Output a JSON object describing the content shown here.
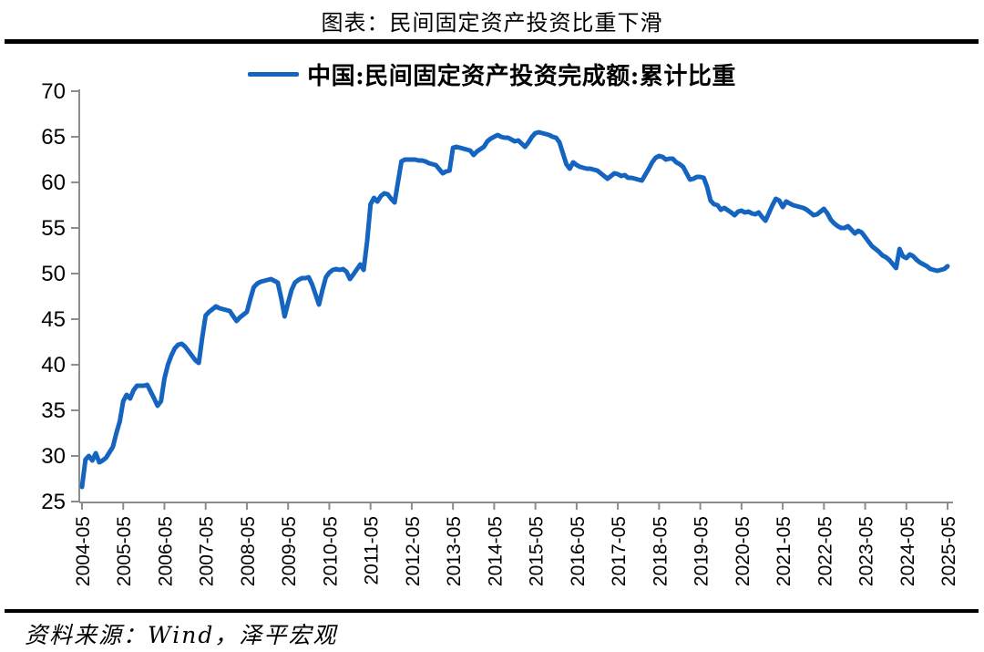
{
  "page_title": "图表：民间固定资产投资比重下滑",
  "source_note": "资料来源：Wind，泽平宏观",
  "chart_data": {
    "type": "line",
    "title": "图表：民间固定资产投资比重下滑",
    "legend": "中国:民间固定资产投资完成额:累计比重",
    "legend_position": "top-center",
    "line_color": "#1565C0",
    "axis_color": "#8C8C8C",
    "tick_label_color": "#000000",
    "grid": false,
    "ylim": [
      25,
      70
    ],
    "y_ticks": [
      25,
      30,
      35,
      40,
      45,
      50,
      55,
      60,
      65,
      70
    ],
    "x_tick_labels": [
      "2004-05",
      "2005-05",
      "2006-05",
      "2007-05",
      "2008-05",
      "2009-05",
      "2010-05",
      "2011-05",
      "2012-05",
      "2013-05",
      "2014-05",
      "2015-05",
      "2016-05",
      "2017-05",
      "2018-05",
      "2019-05",
      "2020-05",
      "2021-05",
      "2022-05",
      "2023-05",
      "2024-05",
      "2025-05"
    ],
    "unit": "%",
    "series": [
      {
        "name": "中国:民间固定资产投资完成额:累计比重",
        "points": [
          [
            "2004-05",
            26.6
          ],
          [
            "2004-06",
            29.6
          ],
          [
            "2004-07",
            30.0
          ],
          [
            "2004-08",
            29.5
          ],
          [
            "2004-09",
            30.3
          ],
          [
            "2004-10",
            29.3
          ],
          [
            "2004-11",
            29.5
          ],
          [
            "2004-12",
            29.8
          ],
          [
            "2005-02",
            31.0
          ],
          [
            "2005-03",
            32.5
          ],
          [
            "2005-04",
            33.8
          ],
          [
            "2005-05",
            36.0
          ],
          [
            "2005-06",
            36.7
          ],
          [
            "2005-07",
            36.3
          ],
          [
            "2005-08",
            37.2
          ],
          [
            "2005-09",
            37.7
          ],
          [
            "2005-10",
            37.7
          ],
          [
            "2005-11",
            37.7
          ],
          [
            "2005-12",
            37.8
          ],
          [
            "2006-02",
            36.3
          ],
          [
            "2006-03",
            35.5
          ],
          [
            "2006-04",
            36.0
          ],
          [
            "2006-05",
            38.5
          ],
          [
            "2006-06",
            40.0
          ],
          [
            "2006-07",
            41.0
          ],
          [
            "2006-08",
            41.8
          ],
          [
            "2006-09",
            42.2
          ],
          [
            "2006-10",
            42.3
          ],
          [
            "2006-11",
            42.0
          ],
          [
            "2006-12",
            41.5
          ],
          [
            "2007-02",
            40.5
          ],
          [
            "2007-03",
            40.2
          ],
          [
            "2007-04",
            43.0
          ],
          [
            "2007-05",
            45.4
          ],
          [
            "2007-06",
            45.8
          ],
          [
            "2007-07",
            46.1
          ],
          [
            "2007-08",
            46.4
          ],
          [
            "2007-09",
            46.2
          ],
          [
            "2007-10",
            46.1
          ],
          [
            "2007-11",
            46.0
          ],
          [
            "2007-12",
            45.9
          ],
          [
            "2008-02",
            44.8
          ],
          [
            "2008-03",
            45.2
          ],
          [
            "2008-04",
            45.5
          ],
          [
            "2008-05",
            45.8
          ],
          [
            "2008-06",
            47.2
          ],
          [
            "2008-07",
            48.5
          ],
          [
            "2008-08",
            48.9
          ],
          [
            "2008-09",
            49.1
          ],
          [
            "2008-10",
            49.2
          ],
          [
            "2008-11",
            49.3
          ],
          [
            "2008-12",
            49.4
          ],
          [
            "2009-02",
            49.0
          ],
          [
            "2009-03",
            47.3
          ],
          [
            "2009-04",
            45.3
          ],
          [
            "2009-05",
            46.8
          ],
          [
            "2009-06",
            48.2
          ],
          [
            "2009-07",
            49.0
          ],
          [
            "2009-08",
            49.3
          ],
          [
            "2009-09",
            49.5
          ],
          [
            "2009-10",
            49.5
          ],
          [
            "2009-11",
            49.6
          ],
          [
            "2009-12",
            48.8
          ],
          [
            "2010-02",
            46.6
          ],
          [
            "2010-03",
            48.2
          ],
          [
            "2010-04",
            49.6
          ],
          [
            "2010-05",
            50.1
          ],
          [
            "2010-06",
            50.4
          ],
          [
            "2010-07",
            50.5
          ],
          [
            "2010-08",
            50.4
          ],
          [
            "2010-09",
            50.5
          ],
          [
            "2010-10",
            50.2
          ],
          [
            "2010-11",
            49.4
          ],
          [
            "2010-12",
            49.9
          ],
          [
            "2011-02",
            51.0
          ],
          [
            "2011-03",
            50.4
          ],
          [
            "2011-04",
            53.5
          ],
          [
            "2011-05",
            57.6
          ],
          [
            "2011-06",
            58.3
          ],
          [
            "2011-07",
            57.9
          ],
          [
            "2011-08",
            58.5
          ],
          [
            "2011-09",
            58.8
          ],
          [
            "2011-10",
            58.7
          ],
          [
            "2011-11",
            58.2
          ],
          [
            "2011-12",
            57.8
          ],
          [
            "2012-02",
            62.3
          ],
          [
            "2012-03",
            62.5
          ],
          [
            "2012-04",
            62.5
          ],
          [
            "2012-05",
            62.5
          ],
          [
            "2012-06",
            62.5
          ],
          [
            "2012-07",
            62.4
          ],
          [
            "2012-08",
            62.4
          ],
          [
            "2012-09",
            62.3
          ],
          [
            "2012-10",
            62.1
          ],
          [
            "2012-11",
            62.0
          ],
          [
            "2012-12",
            61.9
          ],
          [
            "2013-02",
            61.0
          ],
          [
            "2013-03",
            61.2
          ],
          [
            "2013-04",
            61.3
          ],
          [
            "2013-05",
            63.8
          ],
          [
            "2013-06",
            63.9
          ],
          [
            "2013-07",
            63.8
          ],
          [
            "2013-08",
            63.7
          ],
          [
            "2013-09",
            63.6
          ],
          [
            "2013-10",
            63.5
          ],
          [
            "2013-11",
            63.0
          ],
          [
            "2013-12",
            63.4
          ],
          [
            "2014-02",
            63.9
          ],
          [
            "2014-03",
            64.5
          ],
          [
            "2014-04",
            64.8
          ],
          [
            "2014-05",
            65.0
          ],
          [
            "2014-06",
            65.2
          ],
          [
            "2014-07",
            65.0
          ],
          [
            "2014-08",
            64.9
          ],
          [
            "2014-09",
            64.9
          ],
          [
            "2014-10",
            64.7
          ],
          [
            "2014-11",
            64.5
          ],
          [
            "2014-12",
            64.6
          ],
          [
            "2015-02",
            63.9
          ],
          [
            "2015-03",
            64.4
          ],
          [
            "2015-04",
            65.0
          ],
          [
            "2015-05",
            65.4
          ],
          [
            "2015-06",
            65.5
          ],
          [
            "2015-07",
            65.4
          ],
          [
            "2015-08",
            65.3
          ],
          [
            "2015-09",
            65.2
          ],
          [
            "2015-10",
            65.0
          ],
          [
            "2015-11",
            64.9
          ],
          [
            "2015-12",
            64.4
          ],
          [
            "2016-02",
            62.0
          ],
          [
            "2016-03",
            61.5
          ],
          [
            "2016-04",
            62.2
          ],
          [
            "2016-05",
            61.9
          ],
          [
            "2016-06",
            61.7
          ],
          [
            "2016-07",
            61.6
          ],
          [
            "2016-08",
            61.5
          ],
          [
            "2016-09",
            61.5
          ],
          [
            "2016-10",
            61.4
          ],
          [
            "2016-11",
            61.3
          ],
          [
            "2016-12",
            61.0
          ],
          [
            "2017-02",
            60.4
          ],
          [
            "2017-03",
            60.7
          ],
          [
            "2017-04",
            61.0
          ],
          [
            "2017-05",
            60.9
          ],
          [
            "2017-06",
            60.7
          ],
          [
            "2017-07",
            60.8
          ],
          [
            "2017-08",
            60.5
          ],
          [
            "2017-09",
            60.5
          ],
          [
            "2017-10",
            60.4
          ],
          [
            "2017-11",
            60.3
          ],
          [
            "2017-12",
            60.2
          ],
          [
            "2018-02",
            61.5
          ],
          [
            "2018-03",
            62.2
          ],
          [
            "2018-04",
            62.7
          ],
          [
            "2018-05",
            62.9
          ],
          [
            "2018-06",
            62.8
          ],
          [
            "2018-07",
            62.5
          ],
          [
            "2018-08",
            62.6
          ],
          [
            "2018-09",
            62.6
          ],
          [
            "2018-10",
            62.2
          ],
          [
            "2018-11",
            62.0
          ],
          [
            "2018-12",
            61.7
          ],
          [
            "2019-02",
            60.3
          ],
          [
            "2019-03",
            60.4
          ],
          [
            "2019-04",
            60.6
          ],
          [
            "2019-05",
            60.6
          ],
          [
            "2019-06",
            60.5
          ],
          [
            "2019-07",
            59.5
          ],
          [
            "2019-08",
            58.0
          ],
          [
            "2019-09",
            57.6
          ],
          [
            "2019-10",
            57.5
          ],
          [
            "2019-11",
            57.0
          ],
          [
            "2019-12",
            57.2
          ],
          [
            "2020-02",
            56.7
          ],
          [
            "2020-03",
            56.4
          ],
          [
            "2020-04",
            56.8
          ],
          [
            "2020-05",
            56.9
          ],
          [
            "2020-06",
            56.7
          ],
          [
            "2020-07",
            56.8
          ],
          [
            "2020-08",
            56.6
          ],
          [
            "2020-09",
            56.5
          ],
          [
            "2020-10",
            56.7
          ],
          [
            "2020-11",
            56.2
          ],
          [
            "2020-12",
            55.8
          ],
          [
            "2021-02",
            57.5
          ],
          [
            "2021-03",
            58.2
          ],
          [
            "2021-04",
            58.0
          ],
          [
            "2021-05",
            57.3
          ],
          [
            "2021-06",
            57.9
          ],
          [
            "2021-07",
            57.7
          ],
          [
            "2021-08",
            57.5
          ],
          [
            "2021-09",
            57.4
          ],
          [
            "2021-10",
            57.3
          ],
          [
            "2021-11",
            57.2
          ],
          [
            "2021-12",
            57.0
          ],
          [
            "2022-02",
            56.4
          ],
          [
            "2022-03",
            56.5
          ],
          [
            "2022-04",
            56.8
          ],
          [
            "2022-05",
            57.1
          ],
          [
            "2022-06",
            56.6
          ],
          [
            "2022-07",
            55.9
          ],
          [
            "2022-08",
            55.5
          ],
          [
            "2022-09",
            55.2
          ],
          [
            "2022-10",
            55.0
          ],
          [
            "2022-11",
            55.0
          ],
          [
            "2022-12",
            55.2
          ],
          [
            "2023-02",
            54.4
          ],
          [
            "2023-03",
            54.7
          ],
          [
            "2023-04",
            54.5
          ],
          [
            "2023-05",
            54.0
          ],
          [
            "2023-06",
            53.5
          ],
          [
            "2023-07",
            53.0
          ],
          [
            "2023-08",
            52.7
          ],
          [
            "2023-09",
            52.4
          ],
          [
            "2023-10",
            52.0
          ],
          [
            "2023-11",
            51.8
          ],
          [
            "2023-12",
            51.5
          ],
          [
            "2024-02",
            50.6
          ],
          [
            "2024-03",
            52.7
          ],
          [
            "2024-04",
            51.9
          ],
          [
            "2024-05",
            51.7
          ],
          [
            "2024-06",
            52.1
          ],
          [
            "2024-07",
            51.9
          ],
          [
            "2024-08",
            51.5
          ],
          [
            "2024-09",
            51.2
          ],
          [
            "2024-10",
            51.0
          ],
          [
            "2024-11",
            50.8
          ],
          [
            "2024-12",
            50.5
          ],
          [
            "2025-02",
            50.3
          ],
          [
            "2025-03",
            50.4
          ],
          [
            "2025-04",
            50.5
          ],
          [
            "2025-05",
            50.8
          ]
        ]
      }
    ]
  }
}
